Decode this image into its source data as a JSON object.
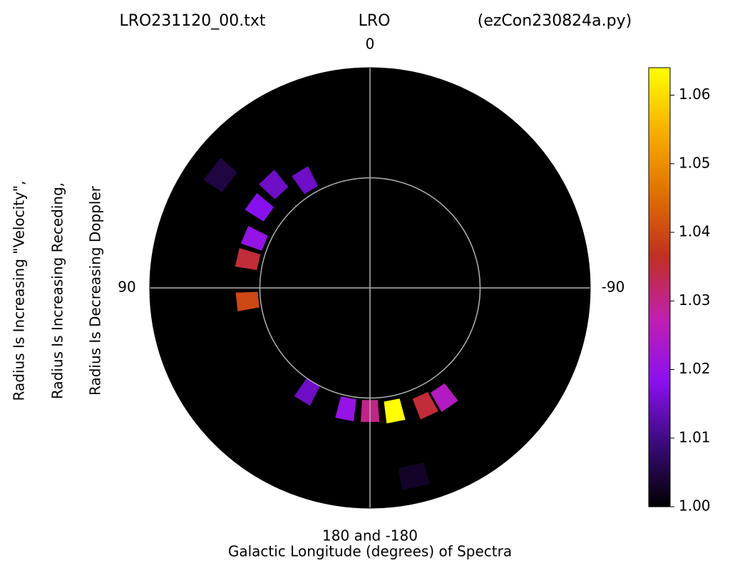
{
  "chart_data": {
    "type": "polar",
    "title_left": "LRO231120_00.txt",
    "title": "LRO",
    "title_right": "(ezCon230824a.py)",
    "xlabel": "Galactic Longitude (degrees) of Spectra",
    "ylabels": [
      "Radius Is Increasing \"Velocity\",",
      "Radius Is Increasing Receding,",
      "Radius Is Decreasing Doppler"
    ],
    "xticks": [
      0,
      90,
      -90,
      {
        "value": 180,
        "label": "180 and -180"
      }
    ],
    "grid": true,
    "background": "#000000",
    "longitude": [
      53,
      43,
      31,
      54,
      67,
      77,
      96,
      149,
      169,
      180,
      -169,
      -155,
      -146,
      -167
    ],
    "r": [
      0.8,
      0.59,
      0.52,
      0.57,
      0.52,
      0.52,
      0.51,
      0.5,
      0.51,
      0.51,
      0.52,
      0.54,
      0.55,
      0.83
    ],
    "values": [
      1.005,
      1.015,
      1.015,
      1.018,
      1.02,
      1.035,
      1.04,
      1.015,
      1.02,
      1.03,
      1.064,
      1.035,
      1.025,
      1.003
    ],
    "colormap": [
      "#000000",
      "#3a0a7a",
      "#8b10f0",
      "#c01fb0",
      "#c03020",
      "#e07000",
      "#f8b000",
      "#ffff00"
    ],
    "clim": [
      1.0,
      1.064
    ],
    "cticks": [
      {
        "value": 1.0,
        "label": "1.00"
      },
      1.01,
      1.02,
      1.03,
      1.04,
      1.05,
      1.06
    ]
  }
}
